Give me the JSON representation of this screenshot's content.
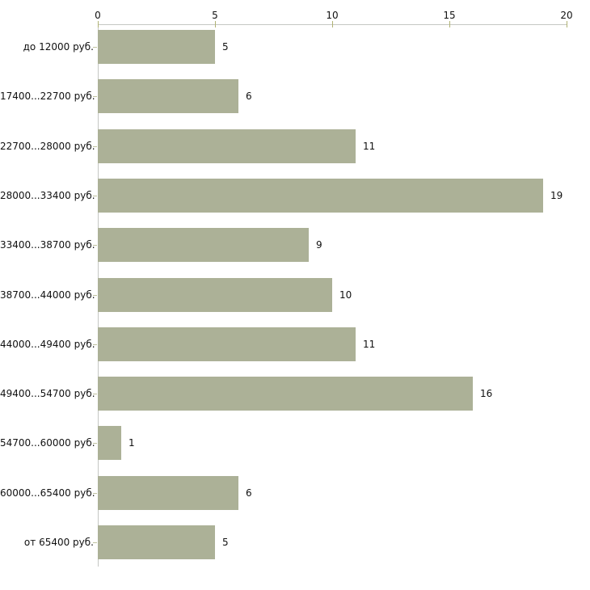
{
  "chart_data": {
    "type": "bar",
    "orientation": "horizontal",
    "title": "",
    "xlabel": "",
    "ylabel": "",
    "categories": [
      "до 12000 руб.",
      "17400...22700 руб.",
      "22700...28000 руб.",
      "28000...33400 руб.",
      "33400...38700 руб.",
      "38700...44000 руб.",
      "44000...49400 руб.",
      "49400...54700 руб.",
      "54700...60000 руб.",
      "60000...65400 руб.",
      "от 65400 руб."
    ],
    "values": [
      5,
      6,
      11,
      19,
      9,
      10,
      11,
      16,
      1,
      6,
      5
    ],
    "xlim": [
      0,
      20
    ],
    "x_ticks": [
      0,
      5,
      10,
      15,
      20
    ],
    "x_axis_position": "top",
    "grid": false,
    "legend": false,
    "value_labels_shown": true,
    "colors": {
      "bar_fill": "#acb197",
      "axis_line": "#c5c7c3",
      "tick_mark": "#b0b273",
      "category_tick": "#bfc2a0",
      "text": "#111111",
      "background": "#ffffff"
    }
  }
}
